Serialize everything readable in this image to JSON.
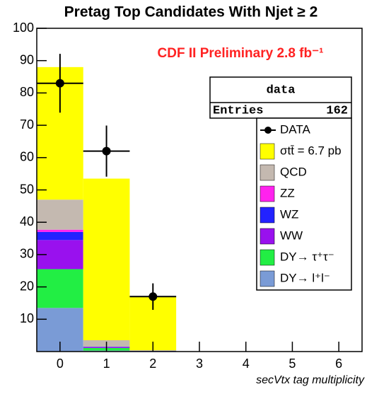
{
  "chart_data": {
    "type": "stacked-histogram",
    "title": "Pretag Top Candidates With Njet ≥ 2",
    "annotation": "CDF II Preliminary 2.8 fb⁻¹",
    "x_label": "secVtx tag multiplicity",
    "categories": [
      0,
      1,
      2,
      3,
      4,
      5,
      6
    ],
    "xlim": [
      -0.5,
      6.5
    ],
    "xticks": [
      0,
      1,
      2,
      3,
      4,
      5,
      6
    ],
    "ylim": [
      0,
      100
    ],
    "yticks": [
      10,
      20,
      30,
      40,
      50,
      60,
      70,
      80,
      90,
      100
    ],
    "series": [
      {
        "name": "DY→ l⁺l⁻",
        "color": "#7a9bd6",
        "values": [
          13.5,
          0.3,
          0,
          0,
          0,
          0,
          0
        ]
      },
      {
        "name": "DY→ τ⁺τ⁻",
        "color": "#22ee44",
        "values": [
          12,
          0.8,
          0,
          0,
          0,
          0,
          0
        ]
      },
      {
        "name": "WW",
        "color": "#9911ee",
        "values": [
          9,
          0.3,
          0.1,
          0,
          0,
          0,
          0
        ]
      },
      {
        "name": "WZ",
        "color": "#2222ff",
        "values": [
          2.5,
          0.1,
          0.1,
          0,
          0,
          0,
          0
        ]
      },
      {
        "name": "ZZ",
        "color": "#ff22ee",
        "values": [
          0.7,
          0,
          0,
          0,
          0,
          0,
          0
        ]
      },
      {
        "name": "QCD",
        "color": "#c4b9b0",
        "values": [
          9.3,
          2,
          0.2,
          0,
          0,
          0,
          0
        ]
      },
      {
        "name": "σtt̄ = 6.7 pb",
        "color": "#ffff00",
        "values": [
          41,
          50,
          16.6,
          0,
          0,
          0,
          0
        ]
      }
    ],
    "data": {
      "name": "DATA",
      "color": "#000000",
      "values": [
        83,
        62,
        17
      ],
      "errors": [
        9.1,
        7.9,
        4.1
      ]
    },
    "stats": {
      "title": "data",
      "label": "Entries",
      "value": 162
    }
  }
}
